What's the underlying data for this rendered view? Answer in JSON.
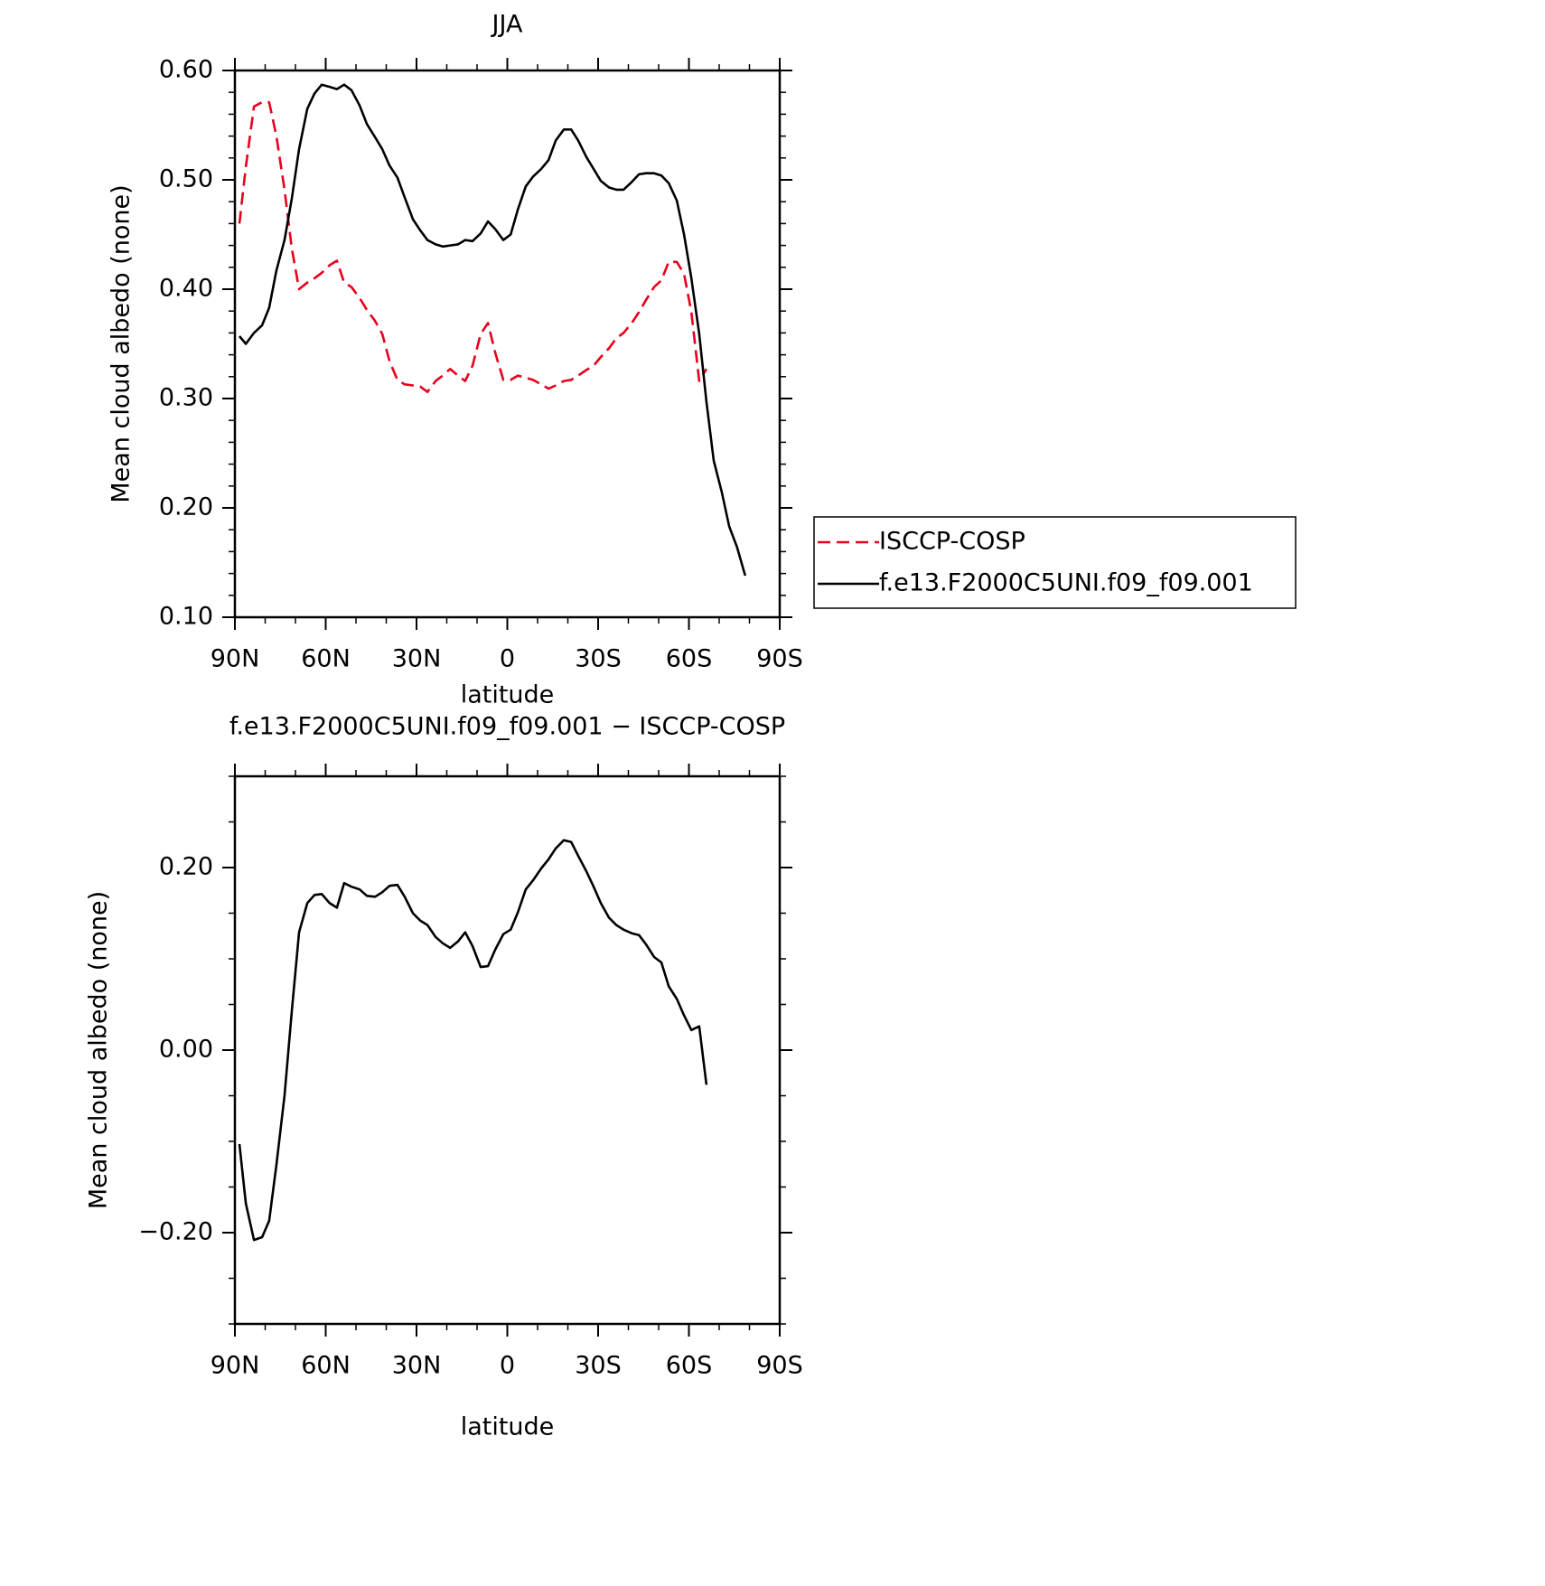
{
  "chart_data": [
    {
      "type": "line",
      "title": "JJA",
      "x_label": "latitude",
      "y_label": "Mean cloud albedo (none)",
      "xlim": [
        90,
        -90
      ],
      "xticks": [
        {
          "value": 90,
          "label": "90N"
        },
        {
          "value": 60,
          "label": "60N"
        },
        {
          "value": 30,
          "label": "30N"
        },
        0,
        {
          "value": -30,
          "label": "30S"
        },
        {
          "value": -60,
          "label": "60S"
        },
        {
          "value": -90,
          "label": "90S"
        }
      ],
      "ylim": [
        0.1,
        0.6
      ],
      "yticks": [
        {
          "value": 0.1,
          "label": "0.10"
        },
        {
          "value": 0.2,
          "label": "0.20"
        },
        {
          "value": 0.3,
          "label": "0.30"
        },
        {
          "value": 0.4,
          "label": "0.40"
        },
        {
          "value": 0.5,
          "label": "0.50"
        },
        {
          "value": 0.6,
          "label": "0.60"
        }
      ],
      "x_minor": 2,
      "y_minor": 4,
      "legend": "right",
      "x": [
        88.5,
        86.4,
        83.7,
        81.0,
        78.7,
        76.3,
        73.6,
        71.2,
        68.8,
        66.1,
        63.7,
        61.3,
        58.7,
        56.3,
        53.9,
        51.5,
        48.8,
        46.4,
        43.7,
        41.3,
        38.9,
        36.3,
        33.9,
        31.2,
        28.8,
        26.4,
        23.7,
        21.3,
        18.9,
        16.3,
        13.9,
        11.5,
        8.8,
        6.4,
        4.0,
        1.3,
        -1.1,
        -3.5,
        -6.1,
        -8.5,
        -11.2,
        -13.6,
        -16.0,
        -18.7,
        -21.1,
        -23.4,
        -26.1,
        -28.5,
        -30.9,
        -33.6,
        -36.0,
        -38.4,
        -41.1,
        -43.5,
        -45.8,
        -48.5,
        -50.9,
        -53.3,
        -56.0,
        -58.4,
        -60.8,
        -63.4,
        -65.8,
        -68.2,
        -70.9,
        -73.3,
        -75.9,
        -78.6
      ],
      "series": [
        {
          "name": "ISCCP-COSP",
          "color": "#e8001c",
          "line_style": "dashed",
          "values": [
            0.46,
            0.512,
            0.567,
            0.571,
            0.571,
            0.54,
            0.491,
            0.437,
            0.4,
            0.406,
            0.41,
            0.415,
            0.422,
            0.426,
            0.406,
            0.402,
            0.392,
            0.381,
            0.371,
            0.359,
            0.334,
            0.317,
            0.313,
            0.312,
            0.311,
            0.306,
            0.316,
            0.321,
            0.327,
            0.321,
            0.316,
            0.33,
            0.359,
            0.369,
            0.342,
            0.317,
            0.317,
            0.321,
            0.319,
            0.317,
            0.313,
            0.309,
            0.312,
            0.316,
            0.317,
            0.321,
            0.326,
            0.33,
            0.338,
            0.346,
            0.355,
            0.36,
            0.369,
            0.379,
            0.39,
            0.402,
            0.408,
            0.425,
            0.425,
            0.414,
            0.379,
            0.316,
            0.327,
            null,
            null,
            null,
            null,
            null
          ]
        },
        {
          "name": "f.e13.F2000C5UNI.f09_f09.001",
          "color": "#000000",
          "line_style": "solid",
          "values": [
            0.357,
            0.35,
            0.36,
            0.367,
            0.383,
            0.417,
            0.445,
            0.483,
            0.528,
            0.565,
            0.579,
            0.587,
            0.585,
            0.583,
            0.587,
            0.582,
            0.568,
            0.551,
            0.539,
            0.528,
            0.513,
            0.502,
            0.484,
            0.464,
            0.454,
            0.445,
            0.441,
            0.439,
            0.44,
            0.441,
            0.445,
            0.444,
            0.451,
            0.462,
            0.455,
            0.445,
            0.45,
            0.473,
            0.494,
            0.503,
            0.51,
            0.518,
            0.536,
            0.546,
            0.546,
            0.536,
            0.521,
            0.51,
            0.499,
            0.493,
            0.491,
            0.491,
            0.498,
            0.505,
            0.506,
            0.506,
            0.504,
            0.497,
            0.481,
            0.45,
            0.41,
            0.359,
            0.297,
            0.243,
            0.214,
            0.183,
            0.164,
            0.138
          ]
        }
      ]
    },
    {
      "type": "line",
      "title": "f.e13.F2000C5UNI.f09_f09.001 − ISCCP-COSP",
      "x_label": "latitude",
      "y_label": "Mean cloud albedo (none)",
      "xlim": [
        90,
        -90
      ],
      "xticks": [
        {
          "value": 90,
          "label": "90N"
        },
        {
          "value": 60,
          "label": "60N"
        },
        {
          "value": 30,
          "label": "30N"
        },
        0,
        {
          "value": -30,
          "label": "30S"
        },
        {
          "value": -60,
          "label": "60S"
        },
        {
          "value": -90,
          "label": "90S"
        }
      ],
      "ylim": [
        -0.3,
        0.3
      ],
      "yticks": [
        {
          "value": -0.2,
          "label": "−0.20"
        },
        {
          "value": 0,
          "label": "0.00"
        },
        {
          "value": 0.2,
          "label": "0.20"
        }
      ],
      "x_minor": 2,
      "y_minor": 3,
      "x": [
        88.5,
        86.4,
        83.7,
        81.0,
        78.7,
        76.3,
        73.6,
        71.2,
        68.8,
        66.1,
        63.7,
        61.3,
        58.7,
        56.3,
        53.9,
        51.5,
        48.8,
        46.4,
        43.7,
        41.3,
        38.9,
        36.3,
        33.9,
        31.2,
        28.8,
        26.4,
        23.7,
        21.3,
        18.9,
        16.3,
        13.9,
        11.5,
        8.8,
        6.4,
        4.0,
        1.3,
        -1.1,
        -3.5,
        -6.1,
        -8.5,
        -11.2,
        -13.6,
        -16.0,
        -18.7,
        -21.1,
        -23.4,
        -26.1,
        -28.5,
        -30.9,
        -33.6,
        -36.0,
        -38.4,
        -41.1,
        -43.5,
        -45.8,
        -48.5,
        -50.9,
        -53.3,
        -56.0,
        -58.4,
        -60.8,
        -63.4,
        -65.8
      ],
      "series": [
        {
          "color": "#000000",
          "line_style": "solid",
          "values": [
            -0.103,
            -0.168,
            -0.208,
            -0.205,
            -0.187,
            -0.126,
            -0.05,
            0.043,
            0.129,
            0.161,
            0.17,
            0.171,
            0.161,
            0.156,
            0.183,
            0.179,
            0.176,
            0.169,
            0.168,
            0.173,
            0.18,
            0.181,
            0.168,
            0.15,
            0.142,
            0.137,
            0.124,
            0.117,
            0.112,
            0.119,
            0.129,
            0.114,
            0.091,
            0.092,
            0.11,
            0.127,
            0.132,
            0.151,
            0.176,
            0.186,
            0.199,
            0.209,
            0.221,
            0.23,
            0.228,
            0.213,
            0.196,
            0.179,
            0.161,
            0.145,
            0.137,
            0.132,
            0.128,
            0.126,
            0.116,
            0.102,
            0.096,
            0.07,
            0.056,
            0.038,
            0.022,
            0.026,
            -0.038
          ]
        }
      ]
    }
  ]
}
